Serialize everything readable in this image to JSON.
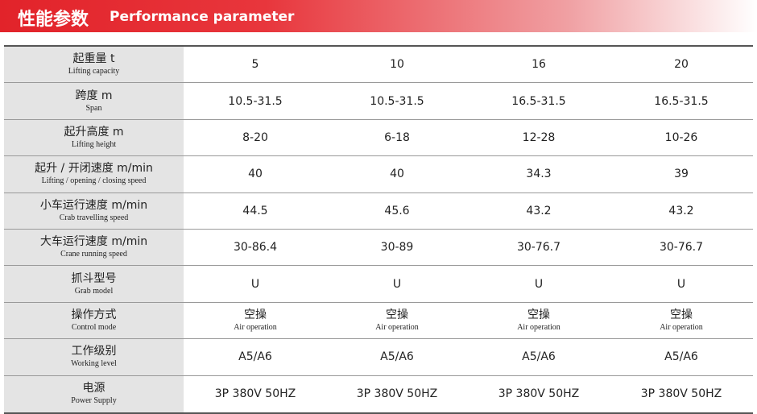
{
  "header": {
    "title_cn": "性能参数",
    "title_en": "Performance parameter"
  },
  "table": {
    "rows": [
      {
        "label": "起重量 t",
        "sublabel": "Lifting capacity",
        "cells": [
          "5",
          "10",
          "16",
          "20"
        ]
      },
      {
        "label": "跨度 m",
        "sublabel": "Span",
        "cells": [
          "10.5-31.5",
          "10.5-31.5",
          "16.5-31.5",
          "16.5-31.5"
        ]
      },
      {
        "label": "起升高度 m",
        "sublabel": "Lifting height",
        "cells": [
          "8-20",
          "6-18",
          "12-28",
          "10-26"
        ]
      },
      {
        "label": "起升 / 开闭速度 m/min",
        "sublabel": "Lifting / opening / closing speed",
        "cells": [
          "40",
          "40",
          "34.3",
          "39"
        ]
      },
      {
        "label": "小车运行速度 m/min",
        "sublabel": "Crab travelling speed",
        "cells": [
          "44.5",
          "45.6",
          "43.2",
          "43.2"
        ]
      },
      {
        "label": "大车运行速度 m/min",
        "sublabel": "Crane running speed",
        "cells": [
          "30-86.4",
          "30-89",
          "30-76.7",
          "30-76.7"
        ]
      },
      {
        "label": "抓斗型号",
        "sublabel": "Grab model",
        "cells": [
          "U",
          "U",
          "U",
          "U"
        ]
      },
      {
        "label": "操作方式",
        "sublabel": "Control mode",
        "cells": [
          {
            "text": "空操",
            "sub": "Air operation"
          },
          {
            "text": "空操",
            "sub": "Air operation"
          },
          {
            "text": "空操",
            "sub": "Air operation"
          },
          {
            "text": "空操",
            "sub": "Air operation"
          }
        ]
      },
      {
        "label": "工作级别",
        "sublabel": "Working level",
        "cells": [
          "A5/A6",
          "A5/A6",
          "A5/A6",
          "A5/A6"
        ]
      },
      {
        "label": "电源",
        "sublabel": "Power Supply",
        "cells": [
          "3P 380V 50HZ",
          "3P 380V 50HZ",
          "3P 380V 50HZ",
          "3P 380V 50HZ"
        ]
      }
    ]
  }
}
